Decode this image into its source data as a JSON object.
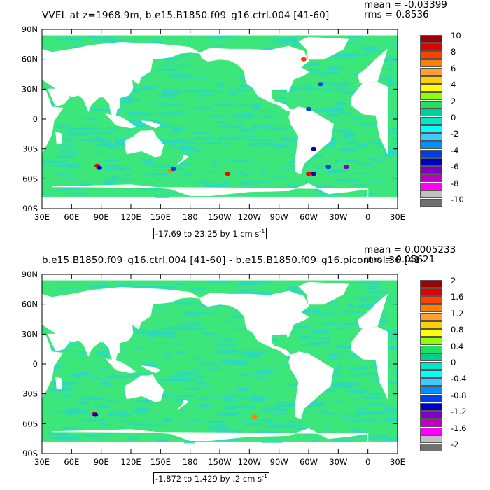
{
  "panels": [
    {
      "title": "VVEL at z=1968.9m, b.e15.B1850.f09_g16.ctrl.004 [41-60]",
      "mean_text": "mean = -0.03399",
      "rms_text": "rms = 0.8536",
      "range_text": "-17.69 to 23.25 by 1 cm s",
      "range_unit_exp": "-1",
      "colorbar": {
        "labels": [
          "10",
          "8",
          "6",
          "4",
          "2",
          "0",
          "-2",
          "-4",
          "-6",
          "-8",
          "-10"
        ],
        "colors": [
          "#a00000",
          "#e00000",
          "#ff4000",
          "#ff8000",
          "#ffa030",
          "#ffd000",
          "#ffff00",
          "#90ff00",
          "#20e060",
          "#00d090",
          "#00e8c8",
          "#00ffff",
          "#40c8ff",
          "#0090ff",
          "#0040e0",
          "#0000c0",
          "#8000c0",
          "#c000c0",
          "#ff00ff",
          "#c0c0c0",
          "#707070"
        ]
      }
    },
    {
      "title": "b.e15.B1850.f09_g16.ctrl.004 [41-60] - b.e15.B1850.f09_g16.picontrol.36 [41-",
      "mean_text": "mean = 0.0005233",
      "rms_text": "rms = 0.05621",
      "range_text": "-1.872 to 1.429 by .2 cm s",
      "range_unit_exp": "-1",
      "colorbar": {
        "labels": [
          "2",
          "1.6",
          "1.2",
          "0.8",
          "0.4",
          "0",
          "-0.4",
          "-0.8",
          "-1.2",
          "-1.6",
          "-2"
        ],
        "colors": [
          "#a00000",
          "#e00000",
          "#ff4000",
          "#ff8000",
          "#ffa030",
          "#ffd000",
          "#ffff00",
          "#90ff00",
          "#20e060",
          "#00d090",
          "#00e8c8",
          "#00ffff",
          "#40c8ff",
          "#0090ff",
          "#0040e0",
          "#0000c0",
          "#8000c0",
          "#c000c0",
          "#ff00ff",
          "#c0c0c0",
          "#707070"
        ]
      }
    }
  ],
  "axes": {
    "lat_labels": [
      "90N",
      "60N",
      "30N",
      "0",
      "30S",
      "60S",
      "90S"
    ],
    "lon_labels": [
      "30E",
      "60E",
      "90E",
      "120E",
      "150E",
      "180",
      "150W",
      "120W",
      "90W",
      "60W",
      "30W",
      "0",
      "30E"
    ]
  },
  "colors": {
    "ocean_main": "#3ce67a",
    "ocean_alt": "#2ad8c0",
    "land": "#ffffff"
  }
}
